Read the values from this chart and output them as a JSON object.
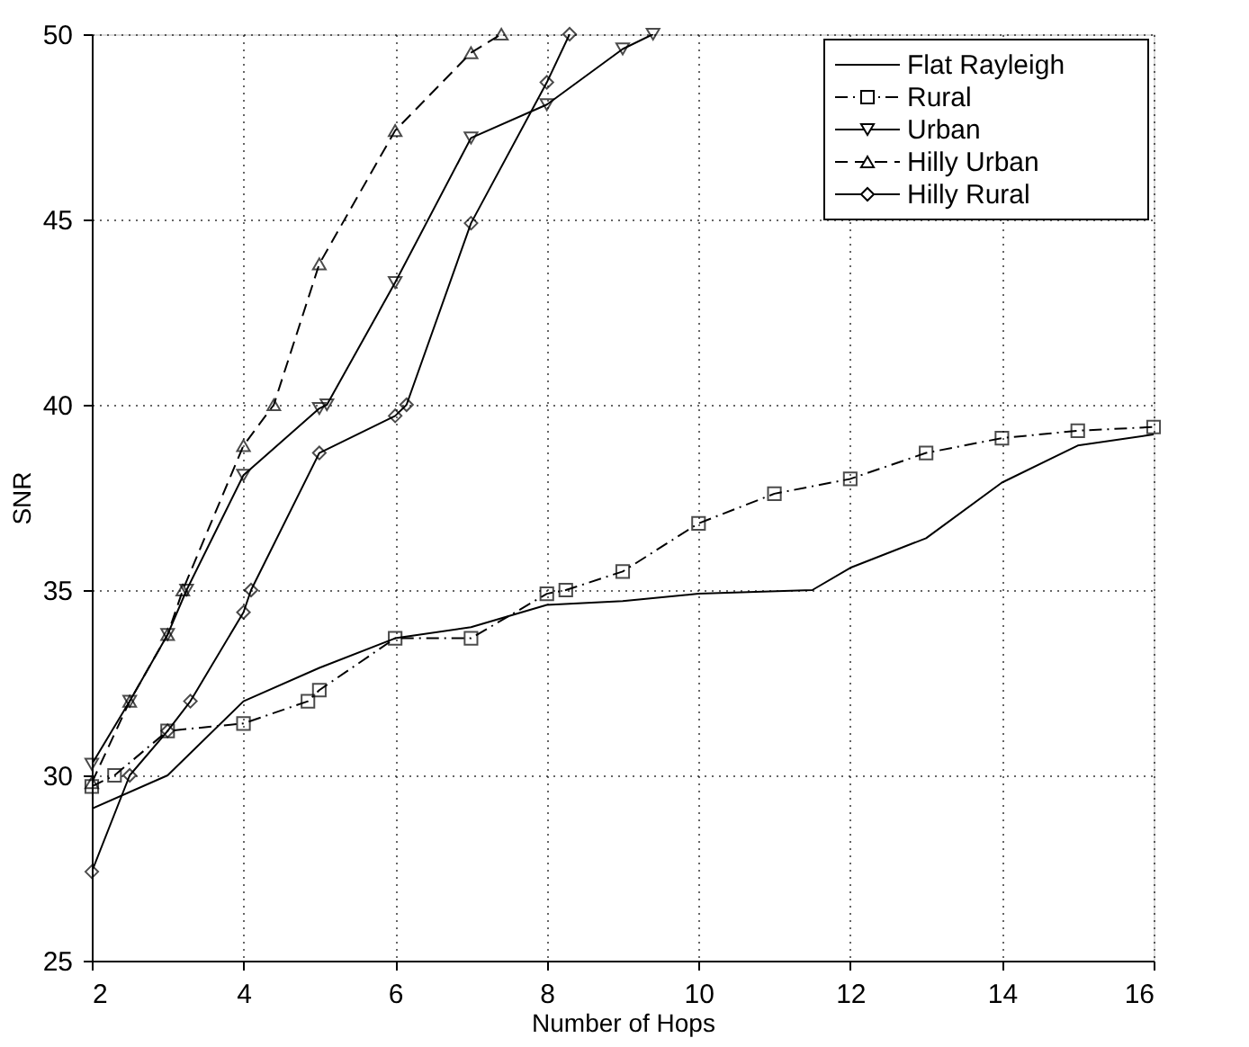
{
  "chart_data": {
    "type": "line",
    "xlabel": "Number of Hops",
    "ylabel": "SNR",
    "xlim": [
      2,
      16
    ],
    "xticks": [
      2,
      4,
      6,
      8,
      10,
      12,
      14,
      16
    ],
    "ylim": [
      25,
      50
    ],
    "yticks": [
      25,
      30,
      35,
      40,
      45,
      50
    ],
    "grid": true,
    "legend": "top right",
    "series": [
      {
        "name": "Flat Rayleigh",
        "color": "#000000",
        "marker": "none",
        "line_style": "solid",
        "x": [
          2,
          3,
          4,
          5,
          6,
          7,
          8,
          9,
          10,
          11.5,
          12,
          13,
          14,
          15,
          16
        ],
        "values": [
          29.1,
          30,
          32,
          32.9,
          33.7,
          34,
          34.6,
          34.7,
          34.9,
          35,
          35.6,
          36.4,
          37.9,
          38.9,
          39.2
        ]
      },
      {
        "name": "Rural",
        "color": "#000000",
        "marker": "square",
        "line_style": "dashdot",
        "x": [
          2,
          2.3,
          3,
          4,
          4.85,
          5,
          6,
          7,
          8,
          8.25,
          9,
          10,
          11,
          12,
          13,
          14,
          15,
          16
        ],
        "values": [
          29.7,
          30,
          31.2,
          31.4,
          32,
          32.3,
          33.7,
          33.7,
          34.9,
          35,
          35.5,
          36.8,
          37.6,
          38,
          38.7,
          39.1,
          39.3,
          39.4
        ]
      },
      {
        "name": "Urban",
        "color": "#000000",
        "marker": "triangle-down",
        "line_style": "solid",
        "x": [
          2,
          2.5,
          3,
          3.25,
          4,
          5,
          5.1,
          6,
          7,
          8,
          9,
          9.4
        ],
        "values": [
          30.3,
          32,
          33.8,
          35,
          38.1,
          39.9,
          40,
          43.3,
          47.2,
          48.1,
          49.6,
          50
        ]
      },
      {
        "name": "Hilly Urban",
        "color": "#000000",
        "marker": "triangle",
        "line_style": "dashed",
        "x": [
          2,
          2.5,
          3,
          3.2,
          4,
          4.4,
          5,
          6,
          7,
          7.4
        ],
        "values": [
          29.8,
          32,
          33.8,
          35,
          38.9,
          40,
          43.8,
          47.4,
          49.5,
          50
        ]
      },
      {
        "name": "Hilly Rural",
        "color": "#000000",
        "marker": "diamond",
        "line_style": "solid",
        "x": [
          2,
          2.5,
          3,
          3.3,
          4,
          4.1,
          5,
          6,
          6.15,
          7,
          8,
          8.3
        ],
        "values": [
          27.4,
          30,
          31.2,
          32,
          34.4,
          35,
          38.7,
          39.7,
          40,
          44.9,
          48.7,
          50
        ]
      }
    ]
  }
}
